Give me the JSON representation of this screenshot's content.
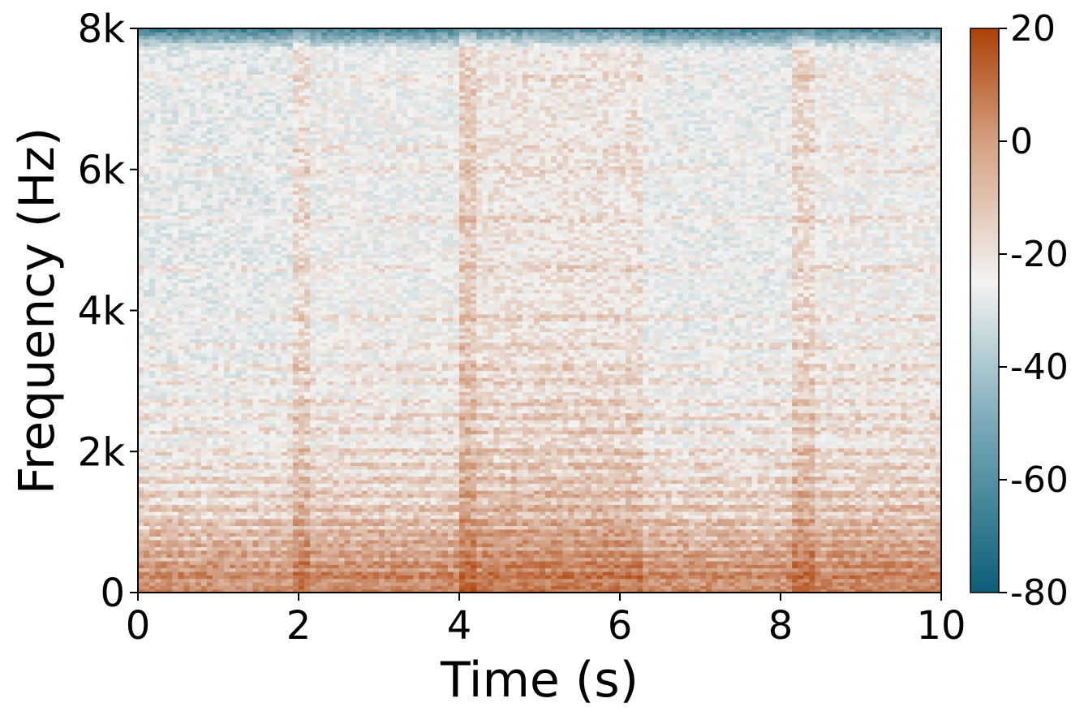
{
  "chart_data": {
    "type": "heatmap",
    "title": "",
    "xlabel": "Time (s)",
    "ylabel": "Frequency (Hz)",
    "xlim": [
      0,
      10
    ],
    "ylim": [
      0,
      8000
    ],
    "x_ticks": [
      {
        "value": 0,
        "label": "0"
      },
      {
        "value": 2,
        "label": "2"
      },
      {
        "value": 4,
        "label": "4"
      },
      {
        "value": 6,
        "label": "6"
      },
      {
        "value": 8,
        "label": "8"
      },
      {
        "value": 10,
        "label": "10"
      }
    ],
    "y_ticks": [
      {
        "value": 0,
        "label": "0"
      },
      {
        "value": 2000,
        "label": "2k"
      },
      {
        "value": 4000,
        "label": "4k"
      },
      {
        "value": 6000,
        "label": "6k"
      },
      {
        "value": 8000,
        "label": "8k"
      }
    ],
    "colorbar": {
      "range": [
        -80,
        20
      ],
      "ticks": [
        {
          "value": 20,
          "label": "20"
        },
        {
          "value": 0,
          "label": "0"
        },
        {
          "value": -20,
          "label": "-20"
        },
        {
          "value": -40,
          "label": "-40"
        },
        {
          "value": -60,
          "label": "-60"
        },
        {
          "value": -80,
          "label": "-80"
        }
      ],
      "colors": {
        "low": "#0b5e78",
        "mid": "#f3f3f2",
        "high": "#ad4006"
      }
    },
    "segments": [
      {
        "start": 0.0,
        "end": 1.9,
        "level_db": -28
      },
      {
        "start": 1.9,
        "end": 4.0,
        "level_db": -26
      },
      {
        "start": 4.0,
        "end": 6.05,
        "level_db": -22
      },
      {
        "start": 6.05,
        "end": 8.15,
        "level_db": -27
      },
      {
        "start": 8.15,
        "end": 10.0,
        "level_db": -25
      }
    ],
    "harmonic_bands_hz": [
      250,
      400,
      550,
      700,
      850,
      1000,
      1200,
      1400,
      1600,
      1800,
      2000,
      2300,
      2500,
      2700,
      3000,
      3200,
      3500,
      3900,
      4600,
      5300,
      6000,
      6300,
      7300
    ],
    "grid": false,
    "legend": "none"
  }
}
